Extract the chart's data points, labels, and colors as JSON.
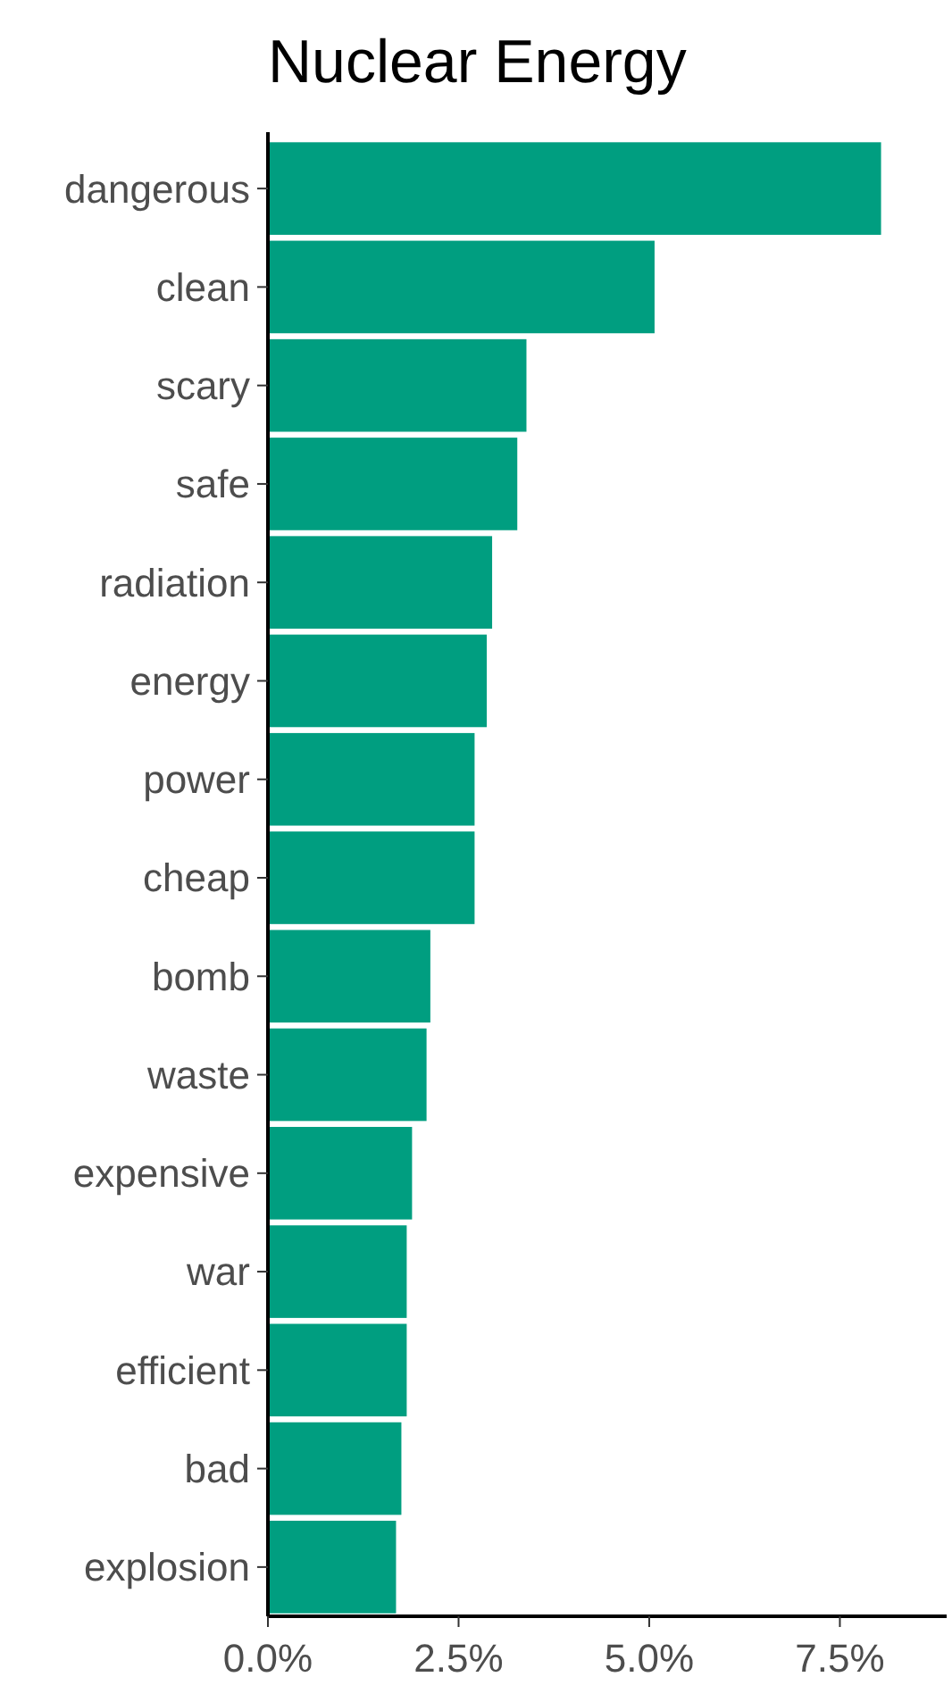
{
  "chart_data": {
    "type": "bar",
    "title": "Nuclear Energy",
    "orientation": "horizontal",
    "categories": [
      "dangerous",
      "clean",
      "scary",
      "safe",
      "radiation",
      "energy",
      "power",
      "cheap",
      "bomb",
      "waste",
      "expensive",
      "war",
      "efficient",
      "bad",
      "explosion"
    ],
    "values": [
      8.04,
      5.07,
      3.39,
      3.27,
      2.94,
      2.87,
      2.71,
      2.71,
      2.13,
      2.08,
      1.89,
      1.82,
      1.82,
      1.75,
      1.68
    ],
    "color": "#009e80",
    "xlim": [
      0,
      8.9
    ],
    "xticks": [
      {
        "value": 0,
        "label": "0.0%"
      },
      {
        "value": 2.5,
        "label": "2.5%"
      },
      {
        "value": 5,
        "label": "5.0%"
      },
      {
        "value": 7.5,
        "label": "7.5%"
      }
    ],
    "grid": false
  }
}
